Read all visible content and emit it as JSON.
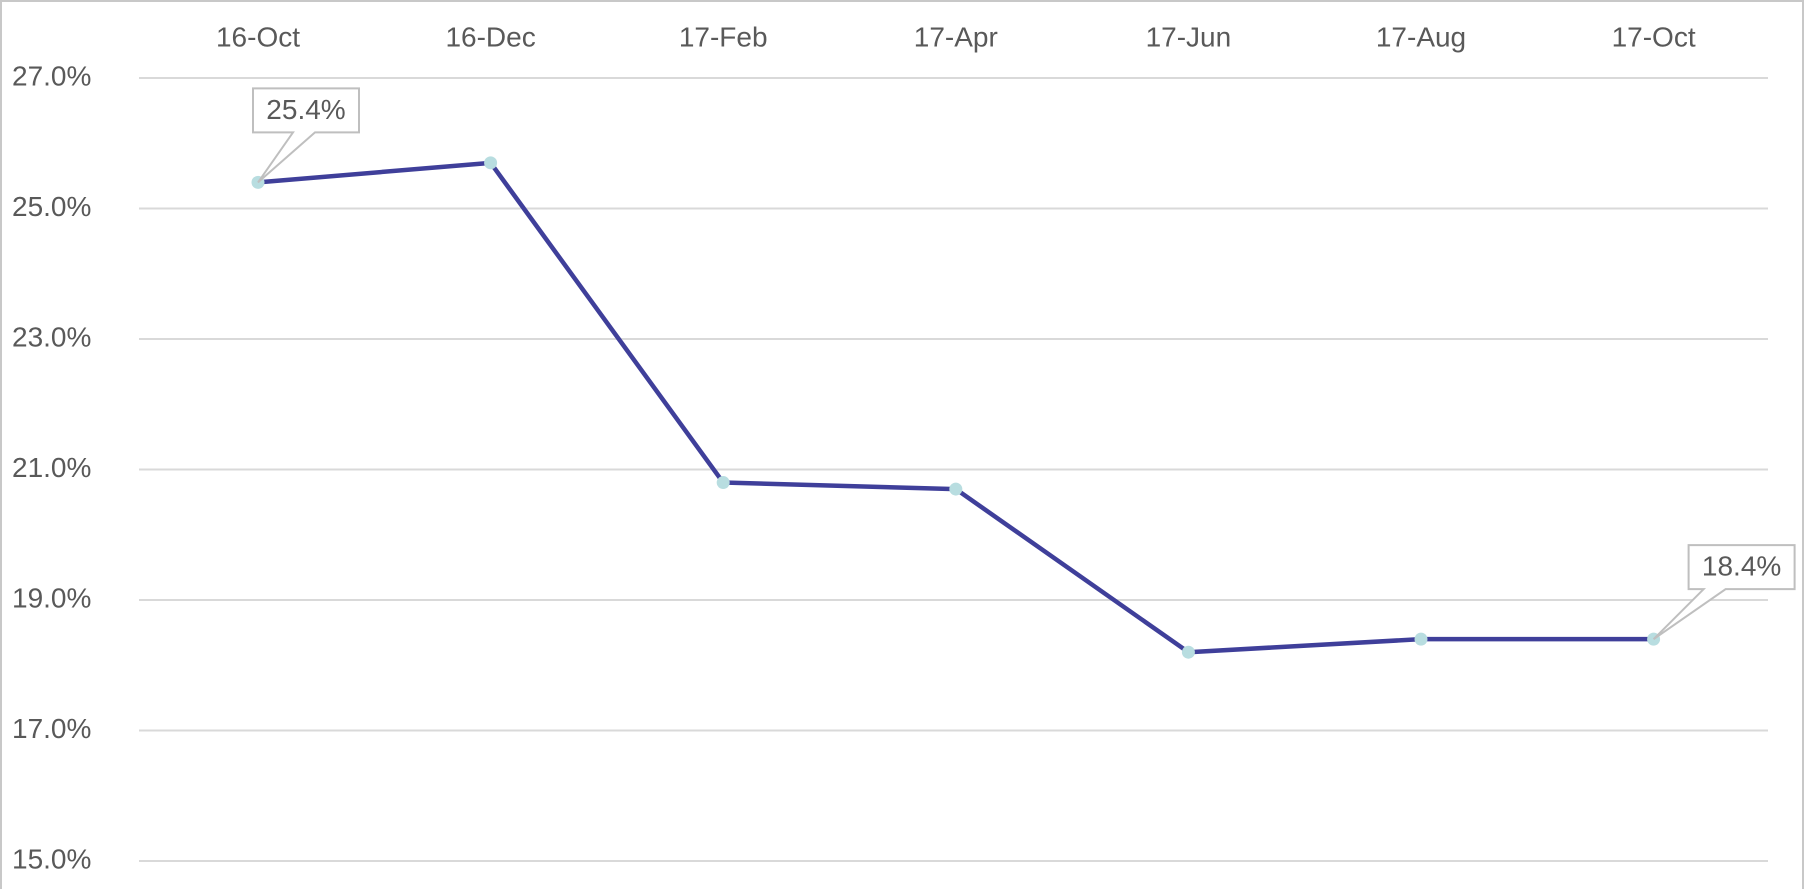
{
  "chart_data": {
    "type": "line",
    "categories": [
      "16-Oct",
      "16-Dec",
      "17-Feb",
      "17-Apr",
      "17-Jun",
      "17-Aug",
      "17-Oct"
    ],
    "series": [
      {
        "color": "#3f3f9a",
        "marker_color": "#b8dde0",
        "values": [
          25.4,
          25.7,
          20.8,
          20.7,
          18.2,
          18.4,
          18.4
        ],
        "value_labels": [
          "25.4%",
          null,
          null,
          null,
          null,
          null,
          "18.4%"
        ]
      }
    ],
    "ylim": [
      15,
      27
    ],
    "yticks": [
      {
        "value": 15,
        "label": "15.0%"
      },
      {
        "value": 17,
        "label": "17.0%"
      },
      {
        "value": 19,
        "label": "19.0%"
      },
      {
        "value": 21,
        "label": "21.0%"
      },
      {
        "value": 23,
        "label": "23.0%"
      },
      {
        "value": 25,
        "label": "25.0%"
      },
      {
        "value": 27,
        "label": "27.0%"
      }
    ],
    "grid": true,
    "x_axis_position": "top"
  }
}
